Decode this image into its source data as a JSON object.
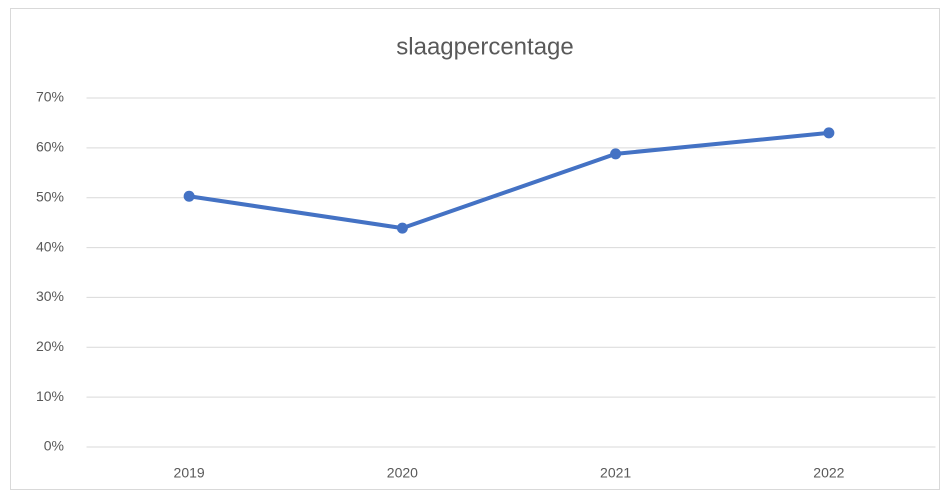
{
  "chart_data": {
    "type": "line",
    "title": "slaagpercentage",
    "categories": [
      "2019",
      "2020",
      "2021",
      "2022"
    ],
    "series": [
      {
        "name": "slaagpercentage",
        "color": "#4472c4",
        "values": [
          50.3,
          43.9,
          58.8,
          63.0
        ]
      }
    ],
    "ylim": [
      0,
      70
    ],
    "yticks": [
      {
        "value": 0,
        "label": "0%"
      },
      {
        "value": 10,
        "label": "10%"
      },
      {
        "value": 20,
        "label": "20%"
      },
      {
        "value": 30,
        "label": "30%"
      },
      {
        "value": 40,
        "label": "40%"
      },
      {
        "value": 50,
        "label": "50%"
      },
      {
        "value": 60,
        "label": "60%"
      },
      {
        "value": 70,
        "label": "70%"
      }
    ],
    "grid": true
  }
}
